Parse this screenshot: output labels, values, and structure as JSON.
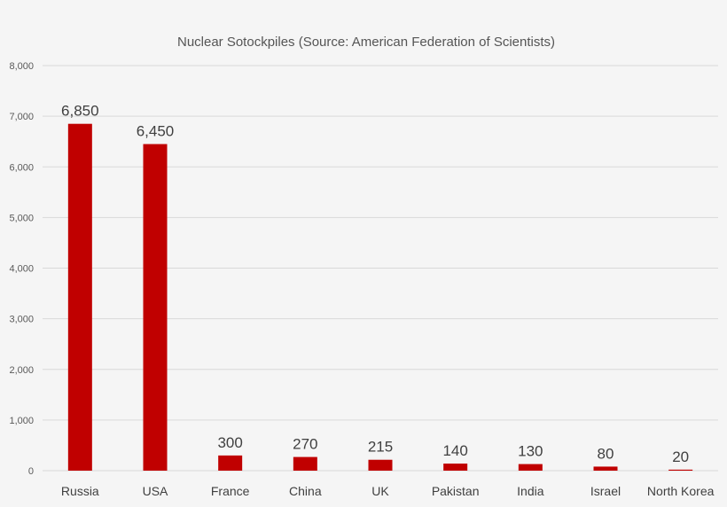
{
  "chart_data": {
    "type": "bar",
    "title": "Nuclear Sotockpiles (Source: American Federation of Scientists)",
    "categories": [
      "Russia",
      "USA",
      "France",
      "China",
      "UK",
      "Pakistan",
      "India",
      "Israel",
      "North Korea"
    ],
    "values": [
      6850,
      6450,
      300,
      270,
      215,
      140,
      130,
      80,
      20
    ],
    "data_labels": [
      "6,850",
      "6,450",
      "300",
      "270",
      "215",
      "140",
      "130",
      "80",
      "20"
    ],
    "yticks": [
      0,
      1000,
      2000,
      3000,
      4000,
      5000,
      6000,
      7000,
      8000
    ],
    "ytick_labels": [
      "0",
      "1,000",
      "2,000",
      "3,000",
      "4,000",
      "5,000",
      "6,000",
      "7,000",
      "8,000"
    ],
    "ylim": [
      0,
      8000
    ],
    "xlabel": "",
    "ylabel": "",
    "grid": true,
    "legend": "none",
    "bar_color": "#c00000"
  }
}
